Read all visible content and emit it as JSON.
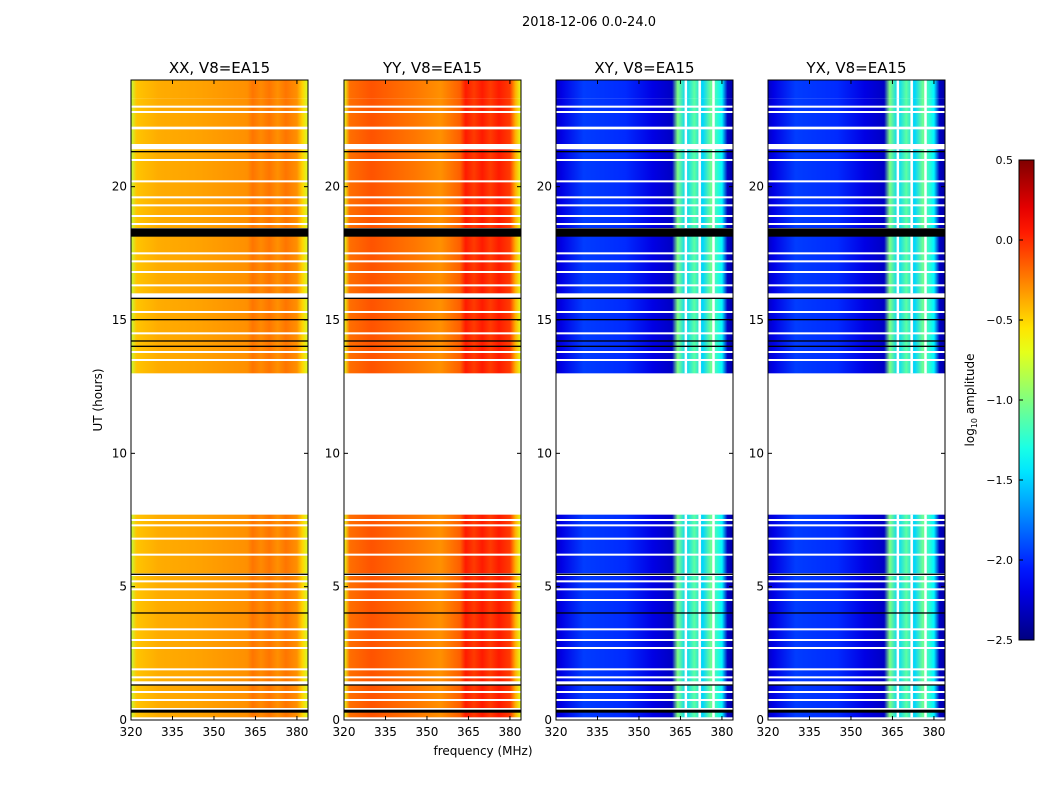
{
  "chart_data": {
    "type": "heatmap",
    "title": "2018-12-06 0.0-24.0",
    "xlabel": "frequency (MHz)",
    "ylabel": "UT (hours)",
    "xlim": [
      320,
      384
    ],
    "ylim": [
      0,
      24
    ],
    "xticks": [
      "320",
      "335",
      "350",
      "365",
      "380"
    ],
    "xtick_values": [
      320,
      335,
      350,
      365,
      380
    ],
    "yticks": [
      "0",
      "5",
      "10",
      "15",
      "20"
    ],
    "ytick_values": [
      0,
      5,
      10,
      15,
      20
    ],
    "colorbar": {
      "label": "log10 amplitude",
      "label_main": "log",
      "label_sub": "10",
      "label_rest": " amplitude",
      "range": [
        -2.5,
        0.5
      ],
      "ticks": [
        "0.5",
        "0.0",
        "−0.5",
        "−1.0",
        "−1.5",
        "−2.0",
        "−2.5"
      ],
      "tick_values": [
        0.5,
        0.0,
        -0.5,
        -1.0,
        -1.5,
        -2.0,
        -2.5
      ],
      "colormap": "jet"
    },
    "data_segments_hours": [
      [
        0.1,
        0.3
      ],
      [
        0.45,
        1.3
      ],
      [
        1.45,
        5.4
      ],
      [
        5.5,
        7.7
      ],
      [
        13.0,
        15.8
      ],
      [
        16.0,
        18.15
      ],
      [
        18.45,
        21.4
      ],
      [
        21.6,
        21.9
      ],
      [
        23.3,
        24.0
      ],
      [
        21.9,
        22.15
      ],
      [
        22.25,
        23.3
      ]
    ],
    "white_gaps_hours": [
      0.75,
      1.05,
      1.6,
      1.9,
      2.7,
      3.0,
      3.4,
      4.5,
      4.9,
      5.2,
      6.2,
      6.8,
      7.3,
      7.5,
      13.5,
      13.8,
      14.5,
      15.3,
      16.3,
      16.8,
      17.2,
      17.5,
      18.6,
      18.9,
      19.3,
      19.6,
      20.2,
      21.0,
      22.8,
      23.0
    ],
    "black_lines_hours": [
      0.35,
      1.3,
      4.0,
      5.45,
      14.0,
      14.2,
      15.0,
      15.8,
      18.2,
      18.3,
      18.4,
      21.3
    ],
    "freq_stops": [
      320,
      322,
      330,
      345,
      355,
      362,
      364,
      367,
      370,
      373,
      376,
      380,
      382,
      384
    ],
    "panels": [
      {
        "title": "XX, V8=EA15",
        "log_amp": [
          -0.8,
          -0.45,
          -0.38,
          -0.35,
          -0.32,
          -0.3,
          -0.22,
          -0.28,
          -0.22,
          -0.3,
          -0.22,
          -0.3,
          -0.5,
          -0.75
        ]
      },
      {
        "title": "YY, V8=EA15",
        "log_amp": [
          -0.7,
          -0.2,
          -0.12,
          -0.22,
          -0.3,
          -0.15,
          0.05,
          -0.05,
          0.05,
          -0.05,
          0.05,
          -0.05,
          -0.4,
          -0.7
        ]
      },
      {
        "title": "XY, V8=EA15",
        "log_amp": [
          -2.3,
          -2.2,
          -1.95,
          -2.0,
          -2.2,
          -2.3,
          -1.0,
          -1.5,
          -1.1,
          -1.5,
          -1.05,
          -1.4,
          -2.3,
          -2.4
        ]
      },
      {
        "title": "YX, V8=EA15",
        "log_amp": [
          -2.3,
          -2.2,
          -1.95,
          -2.0,
          -2.2,
          -2.3,
          -1.0,
          -1.5,
          -1.1,
          -1.5,
          -1.05,
          -1.4,
          -2.3,
          -2.4
        ]
      }
    ]
  }
}
